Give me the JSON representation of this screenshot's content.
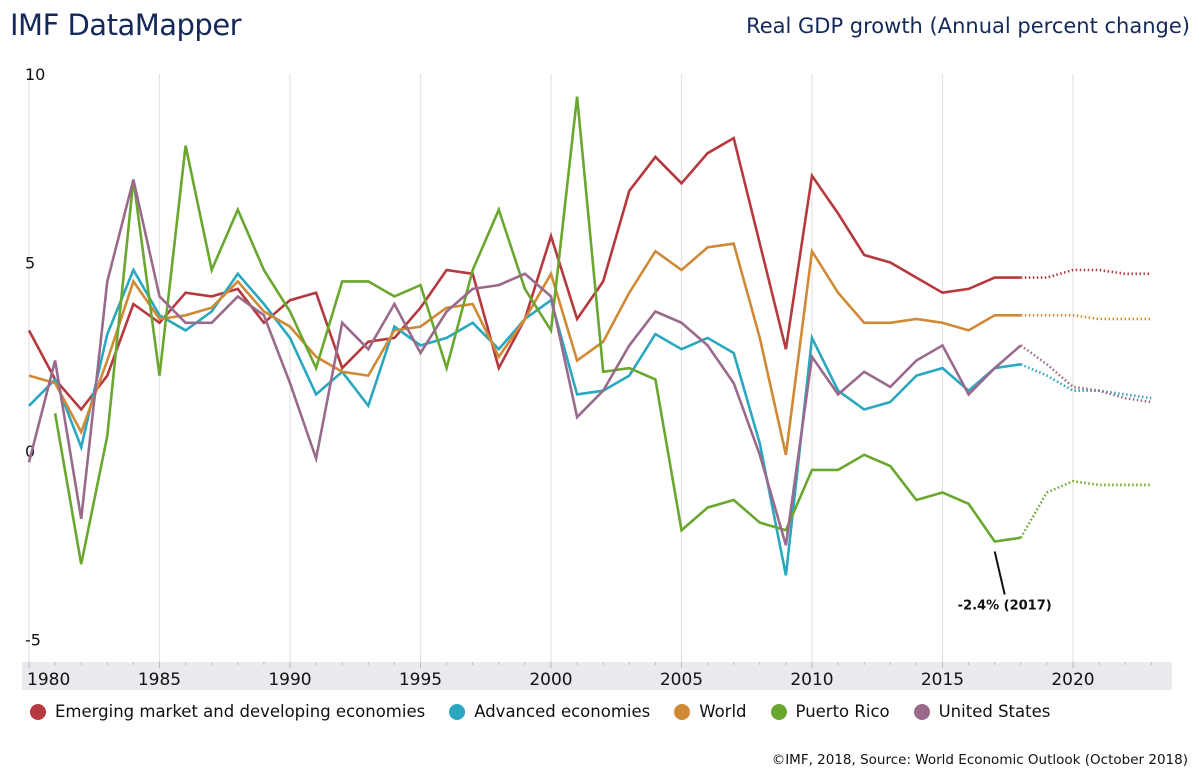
{
  "header": {
    "brand": "IMF DataMapper",
    "title": "Real GDP growth (Annual percent change)"
  },
  "footer": {
    "source": "©IMF, 2018, Source: World Economic Outlook (October 2018)"
  },
  "chart_data": {
    "type": "line",
    "title": "Real GDP growth (Annual percent change)",
    "xlabel": "",
    "ylabel": "",
    "xlim": [
      1980,
      2024
    ],
    "ylim": [
      -5,
      10
    ],
    "x_ticks": [
      "1980",
      "1985",
      "1990",
      "1995",
      "2000",
      "2005",
      "2010",
      "2015",
      "2020"
    ],
    "y_ticks": [
      "10",
      "5",
      "0",
      "-5"
    ],
    "grid": "vertical",
    "legend_position": "bottom",
    "last_actual_year": 2018,
    "projection_style": "dotted",
    "x": [
      1980,
      1981,
      1982,
      1983,
      1984,
      1985,
      1986,
      1987,
      1988,
      1989,
      1990,
      1991,
      1992,
      1993,
      1994,
      1995,
      1996,
      1997,
      1998,
      1999,
      2000,
      2001,
      2002,
      2003,
      2004,
      2005,
      2006,
      2007,
      2008,
      2009,
      2010,
      2011,
      2012,
      2013,
      2014,
      2015,
      2016,
      2017,
      2018,
      2019,
      2020,
      2021,
      2022,
      2023
    ],
    "series": [
      {
        "name": "Emerging market and developing economies",
        "color": "#b5393e",
        "values": [
          3.2,
          1.9,
          1.1,
          2.0,
          3.9,
          3.4,
          4.2,
          4.1,
          4.3,
          3.4,
          4.0,
          4.2,
          2.2,
          2.9,
          3.0,
          3.8,
          4.8,
          4.7,
          2.2,
          3.5,
          5.7,
          3.5,
          4.5,
          6.9,
          7.8,
          7.1,
          7.9,
          8.3,
          5.5,
          2.7,
          7.3,
          6.3,
          5.2,
          5.0,
          4.6,
          4.2,
          4.3,
          4.6,
          4.6,
          4.6,
          4.8,
          4.8,
          4.7,
          4.7
        ]
      },
      {
        "name": "Advanced economies",
        "color": "#2aa8c0",
        "values": [
          1.2,
          1.9,
          0.1,
          3.1,
          4.8,
          3.6,
          3.2,
          3.7,
          4.7,
          3.9,
          3.0,
          1.5,
          2.1,
          1.2,
          3.3,
          2.8,
          3.0,
          3.4,
          2.7,
          3.5,
          4.0,
          1.5,
          1.6,
          2.0,
          3.1,
          2.7,
          3.0,
          2.6,
          0.2,
          -3.3,
          3.0,
          1.6,
          1.1,
          1.3,
          2.0,
          2.2,
          1.6,
          2.2,
          2.3,
          2.0,
          1.6,
          1.6,
          1.5,
          1.4
        ]
      },
      {
        "name": "World",
        "color": "#d08a35",
        "values": [
          2.0,
          1.8,
          0.5,
          2.4,
          4.5,
          3.5,
          3.6,
          3.8,
          4.5,
          3.7,
          3.3,
          2.5,
          2.1,
          2.0,
          3.2,
          3.3,
          3.8,
          3.9,
          2.5,
          3.5,
          4.7,
          2.4,
          2.9,
          4.2,
          5.3,
          4.8,
          5.4,
          5.5,
          3.0,
          -0.1,
          5.3,
          4.2,
          3.4,
          3.4,
          3.5,
          3.4,
          3.2,
          3.6,
          3.6,
          3.6,
          3.6,
          3.5,
          3.5,
          3.5
        ]
      },
      {
        "name": "Puerto Rico",
        "color": "#6aa72e",
        "values": [
          null,
          1.0,
          -3.0,
          0.4,
          7.2,
          2.0,
          8.1,
          4.8,
          6.4,
          4.8,
          3.7,
          2.2,
          4.5,
          4.5,
          4.1,
          4.4,
          2.2,
          4.8,
          6.4,
          4.3,
          3.2,
          9.4,
          2.1,
          2.2,
          1.9,
          -2.1,
          -1.5,
          -1.3,
          -1.9,
          -2.1,
          -0.5,
          -0.5,
          -0.1,
          -0.4,
          -1.3,
          -1.1,
          -1.4,
          -2.4,
          -2.3,
          -1.1,
          -0.8,
          -0.9,
          -0.9,
          -0.9
        ]
      },
      {
        "name": "United States",
        "color": "#9a6a8c",
        "values": [
          -0.3,
          2.4,
          -1.8,
          4.5,
          7.2,
          4.1,
          3.4,
          3.4,
          4.1,
          3.6,
          1.8,
          -0.2,
          3.4,
          2.7,
          3.9,
          2.6,
          3.7,
          4.3,
          4.4,
          4.7,
          4.1,
          0.9,
          1.6,
          2.8,
          3.7,
          3.4,
          2.8,
          1.8,
          -0.1,
          -2.5,
          2.5,
          1.5,
          2.1,
          1.7,
          2.4,
          2.8,
          1.5,
          2.2,
          2.8,
          2.3,
          1.7,
          1.6,
          1.4,
          1.3
        ]
      }
    ],
    "annotations": [
      {
        "text": "-2.4% (2017)",
        "series": "Puerto Rico",
        "x": 2017,
        "y": -2.4
      }
    ]
  }
}
